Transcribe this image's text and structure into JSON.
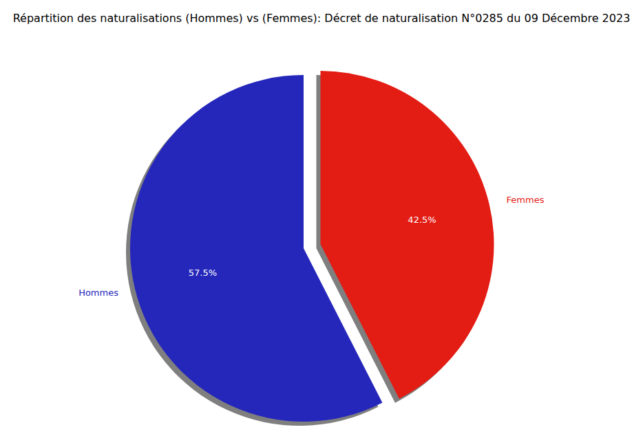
{
  "chart_data": {
    "type": "pie",
    "title": "Répartition des naturalisations (Hommes) vs (Femmes): Décret de naturalisation N°0285 du 09 Décembre 2023",
    "categories": [
      "Hommes",
      "Femmes"
    ],
    "values": [
      57.5,
      42.5
    ],
    "value_labels": [
      "57.5%",
      "42.5%"
    ],
    "colors": [
      "#2527bb",
      "#e31c14"
    ],
    "data_labels": true
  }
}
